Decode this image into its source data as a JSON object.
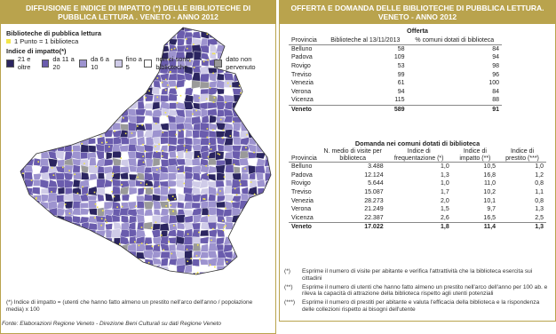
{
  "left": {
    "title": "DIFFUSIONE E INDICE DI IMPATTO (*) DELLE BIBLIOTECHE DI PUBBLICA LETTURA . VENETO - ANNO 2012",
    "legend": {
      "dots_title": "Biblioteche di pubblica lettura",
      "dots_item": "1 Punto = 1 biblioteca",
      "impact_title": "Indice di impatto(*)",
      "items": [
        "21 e oltre",
        "da 11 a 20",
        "da 6 a 10",
        "fino a 5",
        "non ci sono biblioteche",
        "dato non pervenuto"
      ]
    },
    "footnote": "(*) Indice di impatto = (utenti che hanno fatto almeno un prestito nell'arco dell'anno / popolazione media) x 100",
    "source": "Fonte: Elaborazioni Regione Veneto - Direzione Beni Culturali su dati Regione Veneto"
  },
  "right": {
    "title": "OFFERTA E DOMANDA DELLE BIBLIOTECHE DI PUBBLICA LETTURA. VENETO - ANNO 2012",
    "offer": {
      "title": "Offerta",
      "headers": [
        "Provincia",
        "Biblioteche al 13/11/2013",
        "% comuni dotati di biblioteca"
      ],
      "rows": [
        [
          "Belluno",
          "58",
          "84"
        ],
        [
          "Padova",
          "109",
          "94"
        ],
        [
          "Rovigo",
          "53",
          "98"
        ],
        [
          "Treviso",
          "99",
          "96"
        ],
        [
          "Venezia",
          "61",
          "100"
        ],
        [
          "Verona",
          "94",
          "84"
        ],
        [
          "Vicenza",
          "115",
          "88"
        ],
        [
          "Veneto",
          "589",
          "91"
        ]
      ]
    },
    "demand": {
      "title": "Domanda nei comuni dotati di biblioteca",
      "headers": [
        "Provincia",
        "N. medio di visite per biblioteca",
        "Indice di frequentazione (*)",
        "Indice di impatto (**)",
        "Indice di prestito (***)"
      ],
      "rows": [
        [
          "Belluno",
          "3.488",
          "1,0",
          "10,5",
          "1,0"
        ],
        [
          "Padova",
          "12.124",
          "1,3",
          "16,8",
          "1,2"
        ],
        [
          "Rovigo",
          "5.644",
          "1,0",
          "11,0",
          "0,8"
        ],
        [
          "Treviso",
          "15.087",
          "1,7",
          "10,2",
          "1,1"
        ],
        [
          "Venezia",
          "28.273",
          "2,0",
          "10,1",
          "0,8"
        ],
        [
          "Verona",
          "21.249",
          "1,5",
          "9,7",
          "1,3"
        ],
        [
          "Vicenza",
          "22.387",
          "2,6",
          "16,5",
          "2,5"
        ],
        [
          "Veneto",
          "17.022",
          "1,8",
          "11,4",
          "1,3"
        ]
      ]
    },
    "notes": [
      {
        "mark": "(*)",
        "text": "Esprime il numero di visite per abitante e verifica l'attrattività che la biblioteca esercita sui cittadini"
      },
      {
        "mark": "(**)",
        "text": "Esprime il numero di utenti che hanno fatto almeno un prestito nell'arco dell'anno per 100 ab. e rileva la capacità di attrazione della biblioteca rispetto agli utenti potenziali"
      },
      {
        "mark": "(***)",
        "text": "Esprime il numero di prestiti per abitante e valuta l'efficacia della biblioteca e la rispondenza delle collezioni rispetto ai bisogni dell'utente"
      }
    ]
  }
}
